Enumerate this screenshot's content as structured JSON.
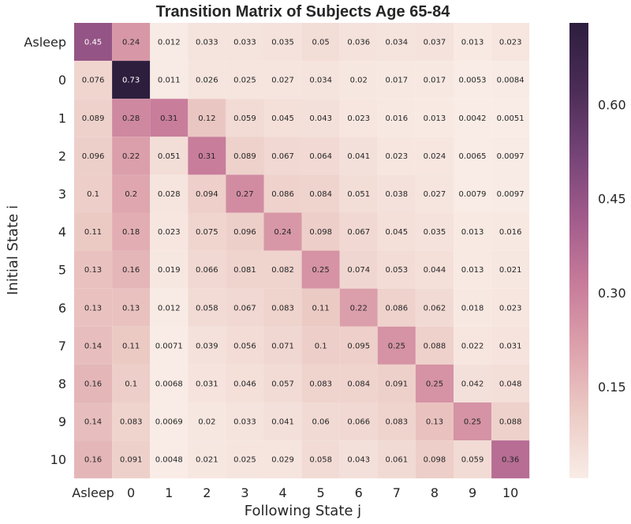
{
  "chart_data": {
    "type": "heatmap",
    "title": "Transition Matrix of Subjects Age 65-84",
    "xlabel": "Following State j",
    "ylabel": "Initial State i",
    "row_labels": [
      "Asleep",
      "0",
      "1",
      "2",
      "3",
      "4",
      "5",
      "6",
      "7",
      "8",
      "9",
      "10"
    ],
    "col_labels": [
      "Asleep",
      "0",
      "1",
      "2",
      "3",
      "4",
      "5",
      "6",
      "7",
      "8",
      "9",
      "10"
    ],
    "values": [
      [
        0.45,
        0.24,
        0.012,
        0.033,
        0.033,
        0.035,
        0.05,
        0.036,
        0.034,
        0.037,
        0.013,
        0.023
      ],
      [
        0.076,
        0.73,
        0.011,
        0.026,
        0.025,
        0.027,
        0.034,
        0.02,
        0.017,
        0.017,
        0.0053,
        0.0084
      ],
      [
        0.089,
        0.28,
        0.31,
        0.12,
        0.059,
        0.045,
        0.043,
        0.023,
        0.016,
        0.013,
        0.0042,
        0.0051
      ],
      [
        0.096,
        0.22,
        0.051,
        0.31,
        0.089,
        0.067,
        0.064,
        0.041,
        0.023,
        0.024,
        0.0065,
        0.0097
      ],
      [
        0.1,
        0.2,
        0.028,
        0.094,
        0.27,
        0.086,
        0.084,
        0.051,
        0.038,
        0.027,
        0.0079,
        0.0097
      ],
      [
        0.11,
        0.18,
        0.023,
        0.075,
        0.096,
        0.24,
        0.098,
        0.067,
        0.045,
        0.035,
        0.013,
        0.016
      ],
      [
        0.13,
        0.16,
        0.019,
        0.066,
        0.081,
        0.082,
        0.25,
        0.074,
        0.053,
        0.044,
        0.013,
        0.021
      ],
      [
        0.13,
        0.13,
        0.012,
        0.058,
        0.067,
        0.083,
        0.11,
        0.22,
        0.086,
        0.062,
        0.018,
        0.023
      ],
      [
        0.14,
        0.11,
        0.0071,
        0.039,
        0.056,
        0.071,
        0.1,
        0.095,
        0.25,
        0.088,
        0.022,
        0.031
      ],
      [
        0.16,
        0.1,
        0.0068,
        0.031,
        0.046,
        0.057,
        0.083,
        0.084,
        0.091,
        0.25,
        0.042,
        0.048
      ],
      [
        0.14,
        0.083,
        0.0069,
        0.02,
        0.033,
        0.041,
        0.06,
        0.066,
        0.083,
        0.13,
        0.25,
        0.088
      ],
      [
        0.16,
        0.091,
        0.0048,
        0.021,
        0.025,
        0.029,
        0.058,
        0.043,
        0.061,
        0.098,
        0.059,
        0.36
      ]
    ],
    "value_labels": [
      [
        "0.45",
        "0.24",
        "0.012",
        "0.033",
        "0.033",
        "0.035",
        "0.05",
        "0.036",
        "0.034",
        "0.037",
        "0.013",
        "0.023"
      ],
      [
        "0.076",
        "0.73",
        "0.011",
        "0.026",
        "0.025",
        "0.027",
        "0.034",
        "0.02",
        "0.017",
        "0.017",
        "0.0053",
        "0.0084"
      ],
      [
        "0.089",
        "0.28",
        "0.31",
        "0.12",
        "0.059",
        "0.045",
        "0.043",
        "0.023",
        "0.016",
        "0.013",
        "0.0042",
        "0.0051"
      ],
      [
        "0.096",
        "0.22",
        "0.051",
        "0.31",
        "0.089",
        "0.067",
        "0.064",
        "0.041",
        "0.023",
        "0.024",
        "0.0065",
        "0.0097"
      ],
      [
        "0.1",
        "0.2",
        "0.028",
        "0.094",
        "0.27",
        "0.086",
        "0.084",
        "0.051",
        "0.038",
        "0.027",
        "0.0079",
        "0.0097"
      ],
      [
        "0.11",
        "0.18",
        "0.023",
        "0.075",
        "0.096",
        "0.24",
        "0.098",
        "0.067",
        "0.045",
        "0.035",
        "0.013",
        "0.016"
      ],
      [
        "0.13",
        "0.16",
        "0.019",
        "0.066",
        "0.081",
        "0.082",
        "0.25",
        "0.074",
        "0.053",
        "0.044",
        "0.013",
        "0.021"
      ],
      [
        "0.13",
        "0.13",
        "0.012",
        "0.058",
        "0.067",
        "0.083",
        "0.11",
        "0.22",
        "0.086",
        "0.062",
        "0.018",
        "0.023"
      ],
      [
        "0.14",
        "0.11",
        "0.0071",
        "0.039",
        "0.056",
        "0.071",
        "0.1",
        "0.095",
        "0.25",
        "0.088",
        "0.022",
        "0.031"
      ],
      [
        "0.16",
        "0.1",
        "0.0068",
        "0.031",
        "0.046",
        "0.057",
        "0.083",
        "0.084",
        "0.091",
        "0.25",
        "0.042",
        "0.048"
      ],
      [
        "0.14",
        "0.083",
        "0.0069",
        "0.02",
        "0.033",
        "0.041",
        "0.06",
        "0.066",
        "0.083",
        "0.13",
        "0.25",
        "0.088"
      ],
      [
        "0.16",
        "0.091",
        "0.0048",
        "0.021",
        "0.025",
        "0.029",
        "0.058",
        "0.043",
        "0.061",
        "0.098",
        "0.059",
        "0.36"
      ]
    ],
    "colorbar": {
      "vmin": 0.0042,
      "vmax": 0.73,
      "ticks": [
        0.15,
        0.3,
        0.45,
        0.6
      ],
      "tick_labels": [
        "0.15",
        "0.30",
        "0.45",
        "0.60"
      ]
    },
    "colormap": [
      "#f9ece6",
      "#eccbc5",
      "#dda1ac",
      "#c77b9a",
      "#a15b8b",
      "#744376",
      "#4a2c56",
      "#2d1e3e"
    ],
    "grid": false,
    "legend": "colorbar-right"
  }
}
